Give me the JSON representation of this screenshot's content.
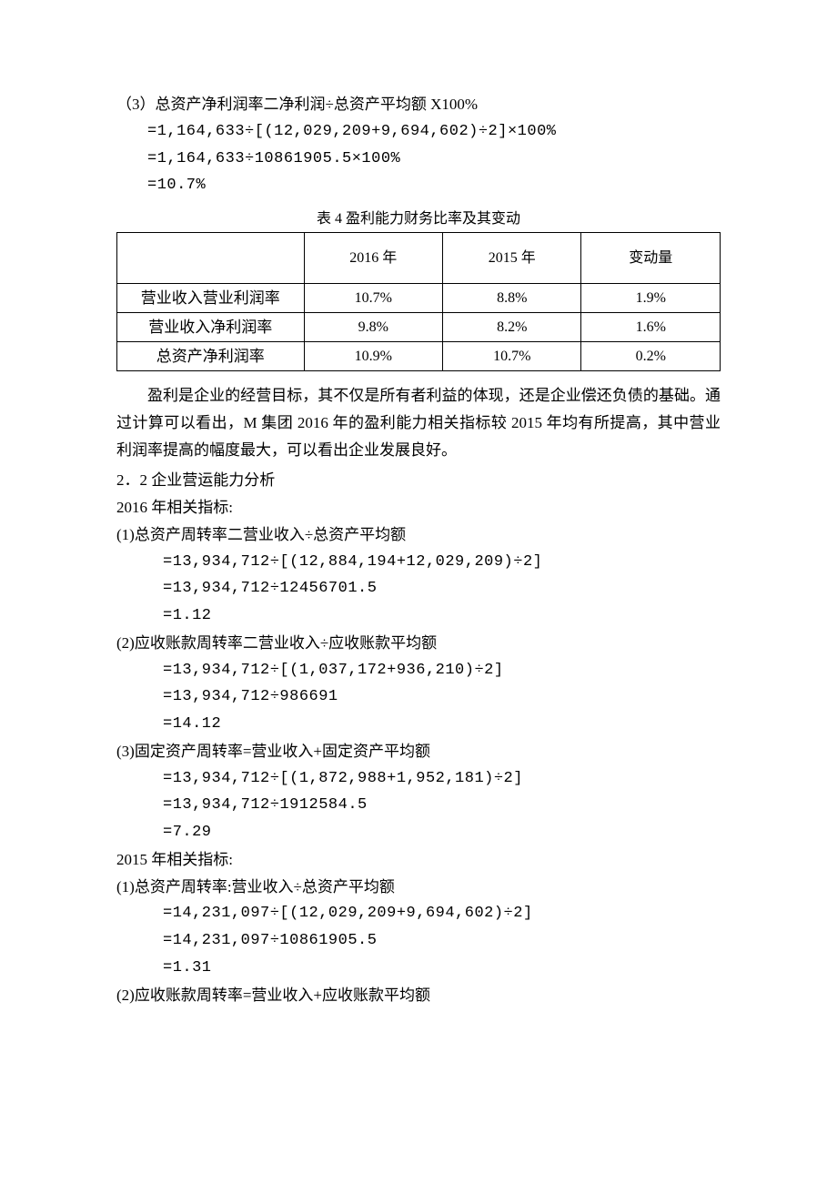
{
  "intro": {
    "line1": "（3）总资产净利润率二净利润÷总资产平均额 X100%",
    "line2": "=1,164,633÷[(12,029,209+9,694,602)÷2]×100%",
    "line3": "=1,164,633÷10861905.5×100%",
    "line4": "=10.7%"
  },
  "table4": {
    "title": "表 4 盈利能力财务比率及其变动",
    "headers": [
      "",
      "2016 年",
      "2015 年",
      "变动量"
    ],
    "rows": [
      [
        "营业收入营业利润率",
        "10.7%",
        "8.8%",
        "1.9%"
      ],
      [
        "营业收入净利润率",
        "9.8%",
        "8.2%",
        "1.6%"
      ],
      [
        "总资产净利润率",
        "10.9%",
        "10.7%",
        "0.2%"
      ]
    ]
  },
  "commentary": "盈利是企业的经营目标，其不仅是所有者利益的体现，还是企业偿还负债的基础。通过计算可以看出，M 集团 2016 年的盈利能力相关指标较 2015 年均有所提高，其中营业利润率提高的幅度最大，可以看出企业发展良好。",
  "section22": {
    "heading": "2．2 企业营运能力分析",
    "y2016_label": "2016 年相关指标:",
    "y2016": {
      "i1": {
        "t": "(1)总资产周转率二营业收入÷总资产平均额",
        "l1": "=13,934,712÷[(12,884,194+12,029,209)÷2]",
        "l2": "=13,934,712÷12456701.5",
        "l3": "=1.12"
      },
      "i2": {
        "t": "(2)应收账款周转率二营业收入÷应收账款平均额",
        "l1": "=13,934,712÷[(1,037,172+936,210)÷2]",
        "l2": "=13,934,712÷986691",
        "l3": "=14.12"
      },
      "i3": {
        "t": "(3)固定资产周转率=营业收入+固定资产平均额",
        "l1": "=13,934,712÷[(1,872,988+1,952,181)÷2]",
        "l2": "=13,934,712÷1912584.5",
        "l3": "=7.29"
      }
    },
    "y2015_label": "2015 年相关指标:",
    "y2015": {
      "i1": {
        "t": "(1)总资产周转率:营业收入÷总资产平均额",
        "l1": "=14,231,097÷[(12,029,209+9,694,602)÷2]",
        "l2": "=14,231,097÷10861905.5",
        "l3": "=1.31"
      },
      "i2": {
        "t": "(2)应收账款周转率=营业收入+应收账款平均额"
      }
    }
  }
}
